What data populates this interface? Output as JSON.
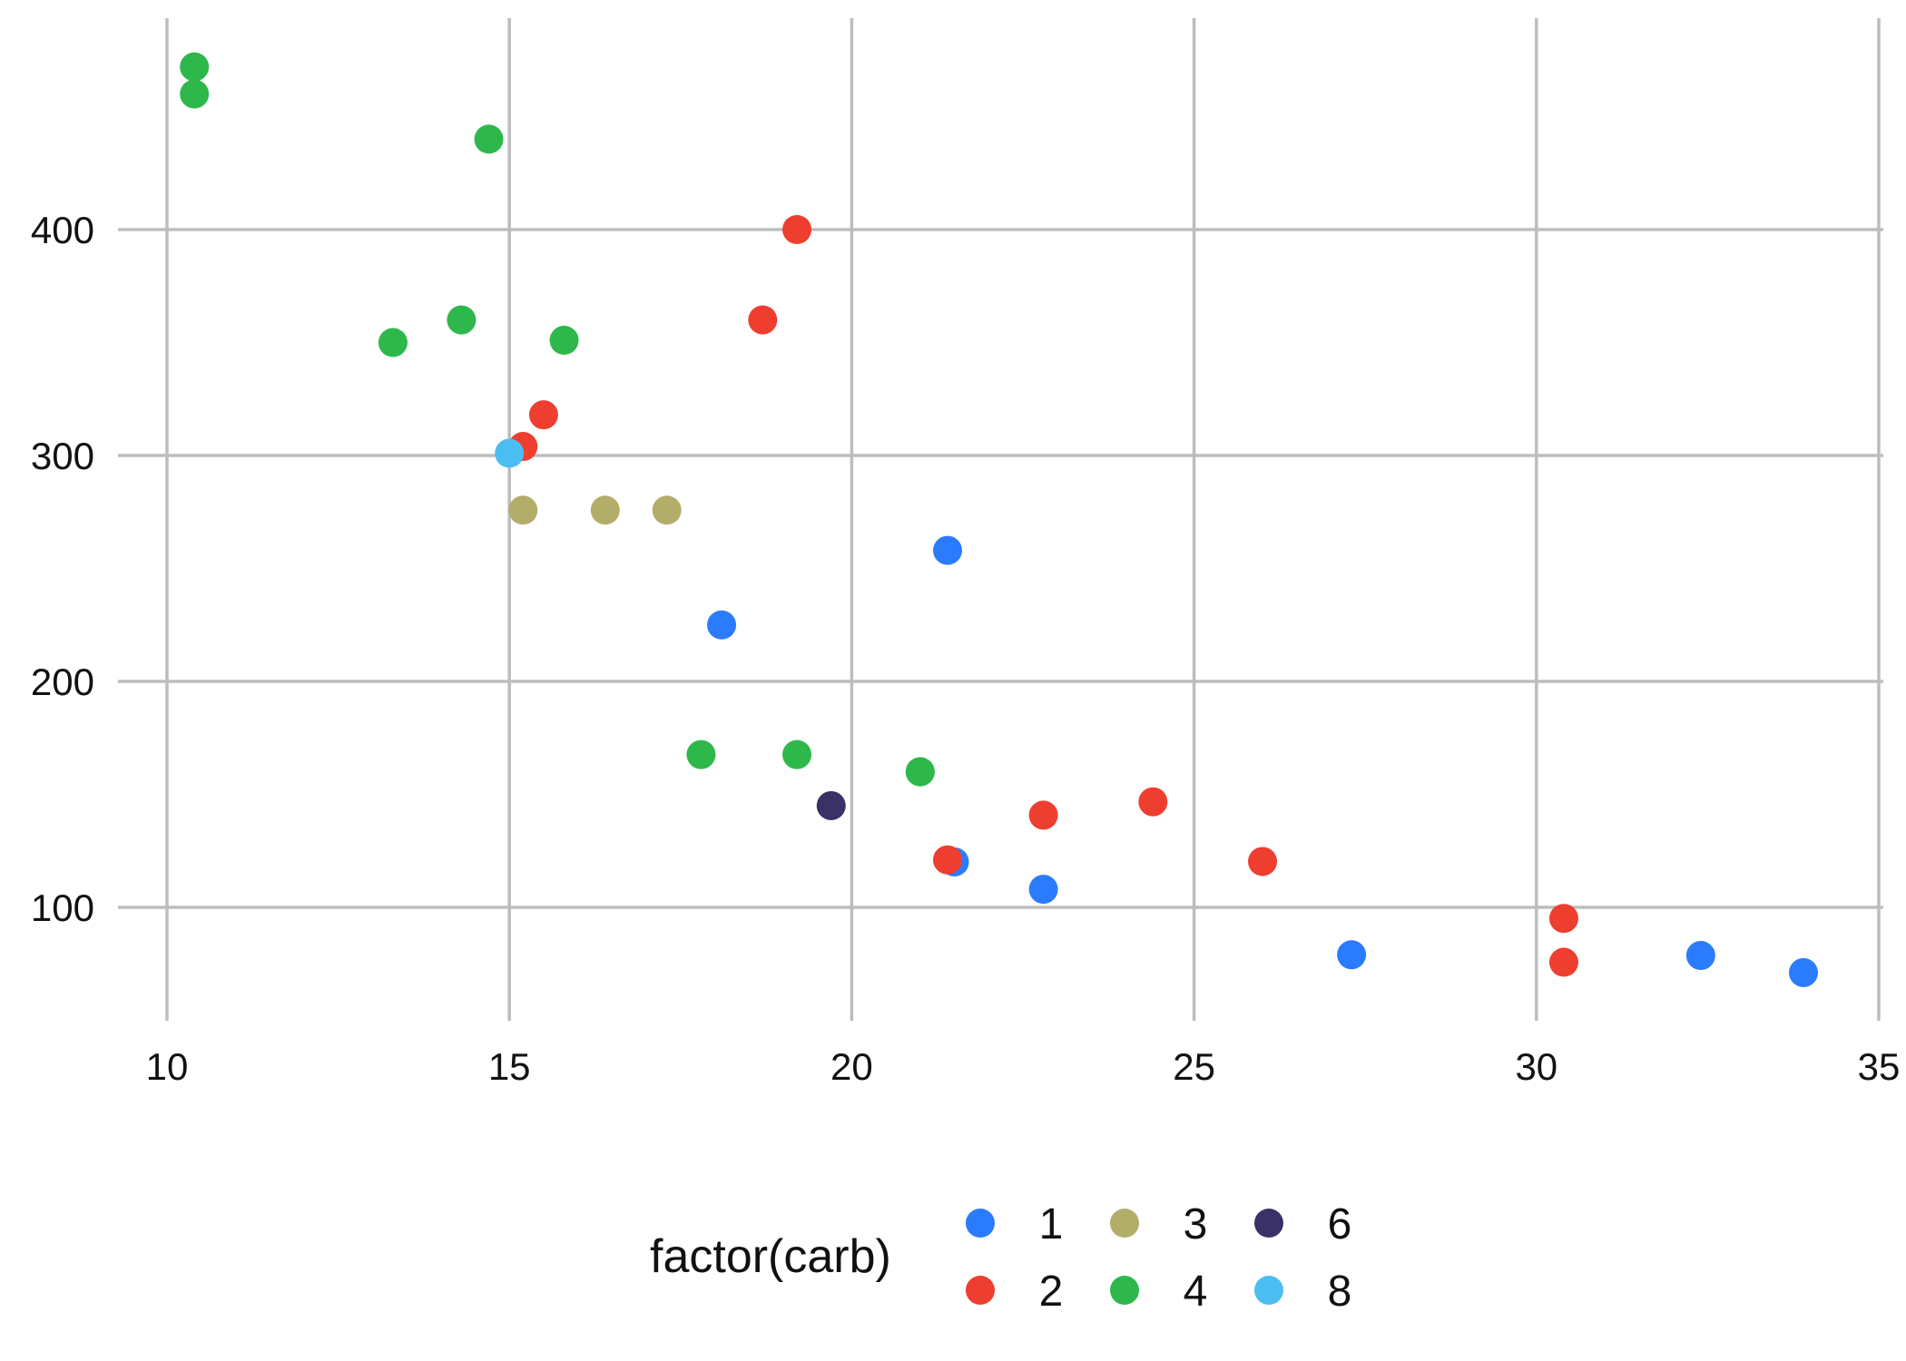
{
  "chart_data": {
    "type": "scatter",
    "title": "",
    "xlabel": "",
    "ylabel": "",
    "xlim": [
      9.2,
      35
    ],
    "ylim": [
      50,
      480
    ],
    "x_ticks": [
      10,
      15,
      20,
      25,
      30,
      35
    ],
    "y_ticks": [
      100,
      200,
      300,
      400
    ],
    "grid": true,
    "legend": {
      "title": "factor(carb)",
      "placement": "bottom",
      "entries": [
        {
          "label": "1",
          "color": "#2b7bff"
        },
        {
          "label": "2",
          "color": "#ee3e2f"
        },
        {
          "label": "3",
          "color": "#b3ad6a"
        },
        {
          "label": "4",
          "color": "#2eb84b"
        },
        {
          "label": "6",
          "color": "#3a3166"
        },
        {
          "label": "8",
          "color": "#4cbdf0"
        }
      ]
    },
    "series": [
      {
        "name": "1",
        "color": "#2b7bff",
        "x": [
          21.4,
          18.1,
          22.8,
          32.4,
          33.9,
          21.5,
          27.3
        ],
        "y": [
          258,
          225,
          108,
          78.7,
          71.1,
          120.1,
          79
        ]
      },
      {
        "name": "2",
        "color": "#ee3e2f",
        "x": [
          18.7,
          24.4,
          22.8,
          15.5,
          15.2,
          30.4,
          19.2,
          26,
          30.4,
          21.4
        ],
        "y": [
          360,
          146.7,
          140.8,
          318,
          304,
          75.7,
          400,
          120.3,
          95.1,
          121
        ]
      },
      {
        "name": "3",
        "color": "#b3ad6a",
        "x": [
          16.4,
          17.3,
          15.2
        ],
        "y": [
          275.8,
          275.8,
          275.8
        ]
      },
      {
        "name": "4",
        "color": "#2eb84b",
        "x": [
          21,
          21,
          14.3,
          19.2,
          17.8,
          10.4,
          10.4,
          14.7,
          13.3,
          15.8
        ],
        "y": [
          160,
          160,
          360,
          167.6,
          167.6,
          472,
          460,
          440,
          350,
          351
        ]
      },
      {
        "name": "6",
        "color": "#3a3166",
        "x": [
          19.7
        ],
        "y": [
          145
        ]
      },
      {
        "name": "8",
        "color": "#4cbdf0",
        "x": [
          15
        ],
        "y": [
          301
        ]
      }
    ]
  }
}
